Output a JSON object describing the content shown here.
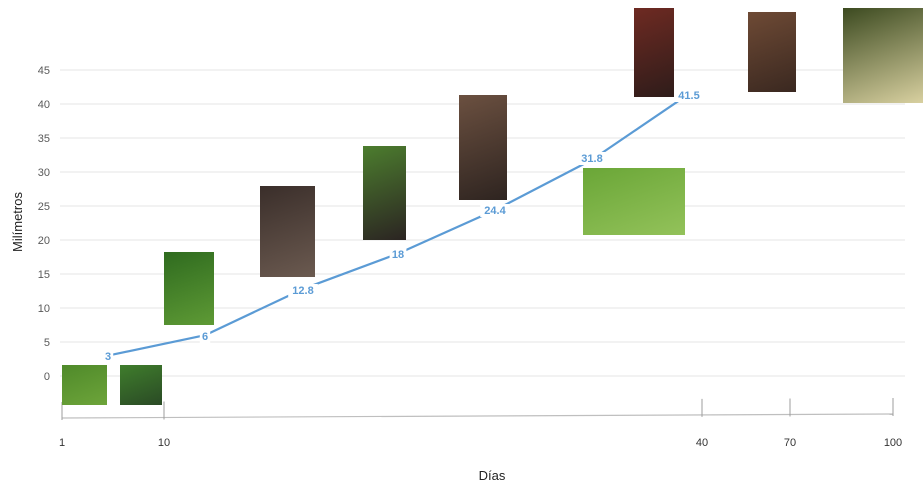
{
  "chart_data": {
    "type": "line",
    "title": "",
    "xlabel": "Días",
    "ylabel": "Milímetros",
    "ylim": [
      0,
      45
    ],
    "yticks": [
      0,
      5,
      10,
      15,
      20,
      25,
      30,
      35,
      40,
      45
    ],
    "xticks": [
      "1",
      "10",
      "40",
      "70",
      "100"
    ],
    "grid": true,
    "series": [
      {
        "values": [
          3,
          6,
          12.8,
          18,
          24.4,
          31.8,
          41.5
        ],
        "labels": [
          "3",
          "6",
          "12.8",
          "18",
          "24.4",
          "31.8",
          "41.5"
        ]
      }
    ],
    "colors": {
      "line": "#5b9bd5",
      "grid": "#e6e6e6",
      "axis": "#bfbfbf"
    }
  },
  "photos": [
    {
      "name": "egg-on-leaf-photo",
      "colors": [
        "#4f8a2a",
        "#6da43a"
      ]
    },
    {
      "name": "first-instar-larva-photo",
      "colors": [
        "#3f7d2c",
        "#2a4a25"
      ]
    },
    {
      "name": "early-larva-on-leaf-photo",
      "colors": [
        "#2f6b1f",
        "#5e9a35"
      ]
    },
    {
      "name": "larva-bird-dropping-stage-photo",
      "colors": [
        "#3a2e2a",
        "#6b5a50"
      ]
    },
    {
      "name": "larva-on-leaf-photo",
      "colors": [
        "#4c7d2e",
        "#2b2422"
      ]
    },
    {
      "name": "larva-brown-white-photo",
      "colors": [
        "#6b5040",
        "#2e2420"
      ]
    },
    {
      "name": "green-caterpillar-photo",
      "colors": [
        "#6aa637",
        "#93c25a"
      ]
    },
    {
      "name": "prepupa-photo",
      "colors": [
        "#6e2a22",
        "#2e1c1a"
      ]
    },
    {
      "name": "pupa-chrysalis-photo",
      "colors": [
        "#6e4a35",
        "#3a2820"
      ]
    },
    {
      "name": "adult-swallowtail-butterfly-photo",
      "colors": [
        "#3c4a20",
        "#d8d0a0"
      ]
    }
  ]
}
